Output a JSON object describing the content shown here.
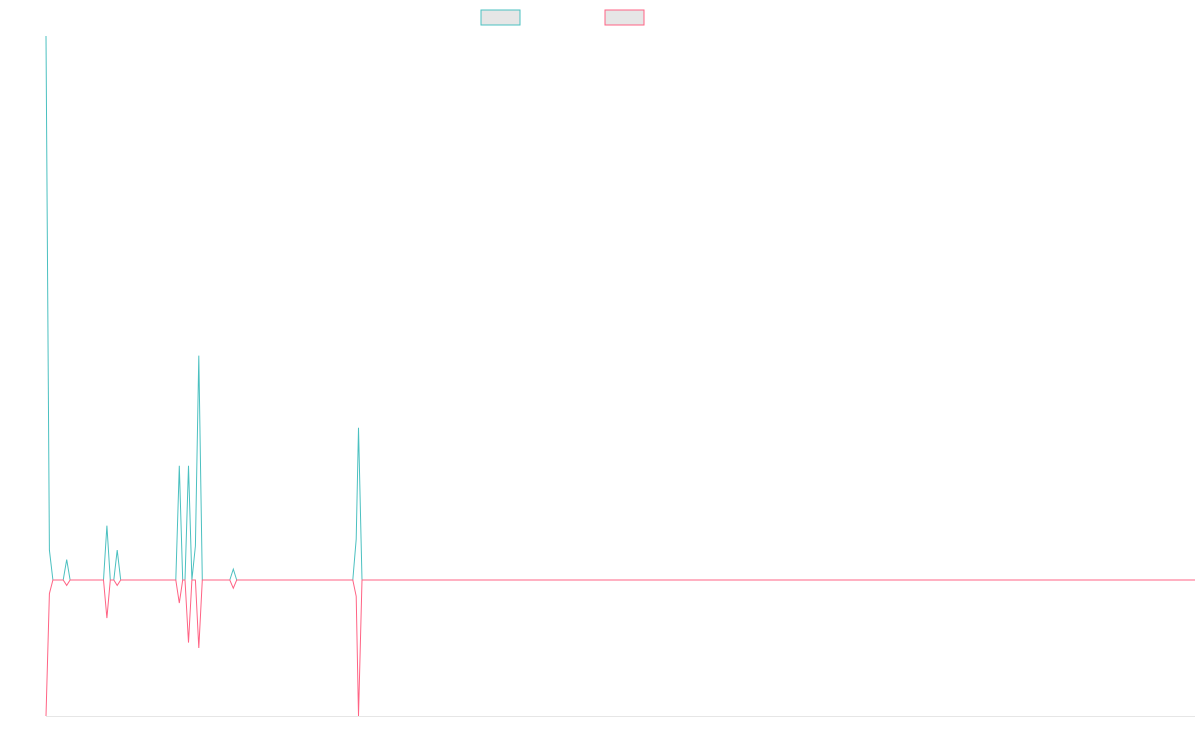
{
  "chart_data": {
    "type": "line",
    "title": "",
    "xlabel": "",
    "ylabel": "",
    "grid": false,
    "legend_position": "top-center",
    "colors": {
      "series_0": "#4bc0c0",
      "series_1": "#ff6384",
      "legend_fill": "#e6e6e6",
      "axis": "#e6e6e6"
    },
    "x_range": [
      0,
      1000
    ],
    "ylim": [
      -100,
      400
    ],
    "series": [
      {
        "color": "#4bc0c0",
        "points": [
          [
            0,
            400
          ],
          [
            3,
            22
          ],
          [
            6,
            0
          ],
          [
            15,
            0
          ],
          [
            18,
            15
          ],
          [
            21,
            0
          ],
          [
            50,
            0
          ],
          [
            53,
            40
          ],
          [
            56,
            0
          ],
          [
            59,
            0
          ],
          [
            62,
            22
          ],
          [
            65,
            0
          ],
          [
            70,
            0
          ],
          [
            113,
            0
          ],
          [
            116,
            84
          ],
          [
            119,
            0
          ],
          [
            121,
            0
          ],
          [
            124,
            84
          ],
          [
            127,
            0
          ],
          [
            130,
            25
          ],
          [
            133,
            165
          ],
          [
            136,
            0
          ],
          [
            160,
            0
          ],
          [
            163,
            8
          ],
          [
            166,
            0
          ],
          [
            176,
            0
          ],
          [
            267,
            0
          ],
          [
            270,
            30
          ],
          [
            272,
            112
          ],
          [
            275,
            0
          ],
          [
            1000,
            0
          ]
        ]
      },
      {
        "color": "#ff6384",
        "points": [
          [
            0,
            -100
          ],
          [
            3,
            -10
          ],
          [
            6,
            0
          ],
          [
            15,
            0
          ],
          [
            18,
            -4
          ],
          [
            21,
            0
          ],
          [
            50,
            0
          ],
          [
            53,
            -28
          ],
          [
            56,
            0
          ],
          [
            59,
            0
          ],
          [
            62,
            -4
          ],
          [
            65,
            0
          ],
          [
            70,
            0
          ],
          [
            113,
            0
          ],
          [
            116,
            -17
          ],
          [
            119,
            0
          ],
          [
            121,
            0
          ],
          [
            124,
            -46
          ],
          [
            127,
            0
          ],
          [
            130,
            0
          ],
          [
            133,
            -50
          ],
          [
            136,
            0
          ],
          [
            160,
            0
          ],
          [
            163,
            -6
          ],
          [
            166,
            0
          ],
          [
            176,
            0
          ],
          [
            267,
            0
          ],
          [
            270,
            -12
          ],
          [
            272,
            -100
          ],
          [
            275,
            0
          ],
          [
            1000,
            0
          ]
        ]
      }
    ]
  }
}
